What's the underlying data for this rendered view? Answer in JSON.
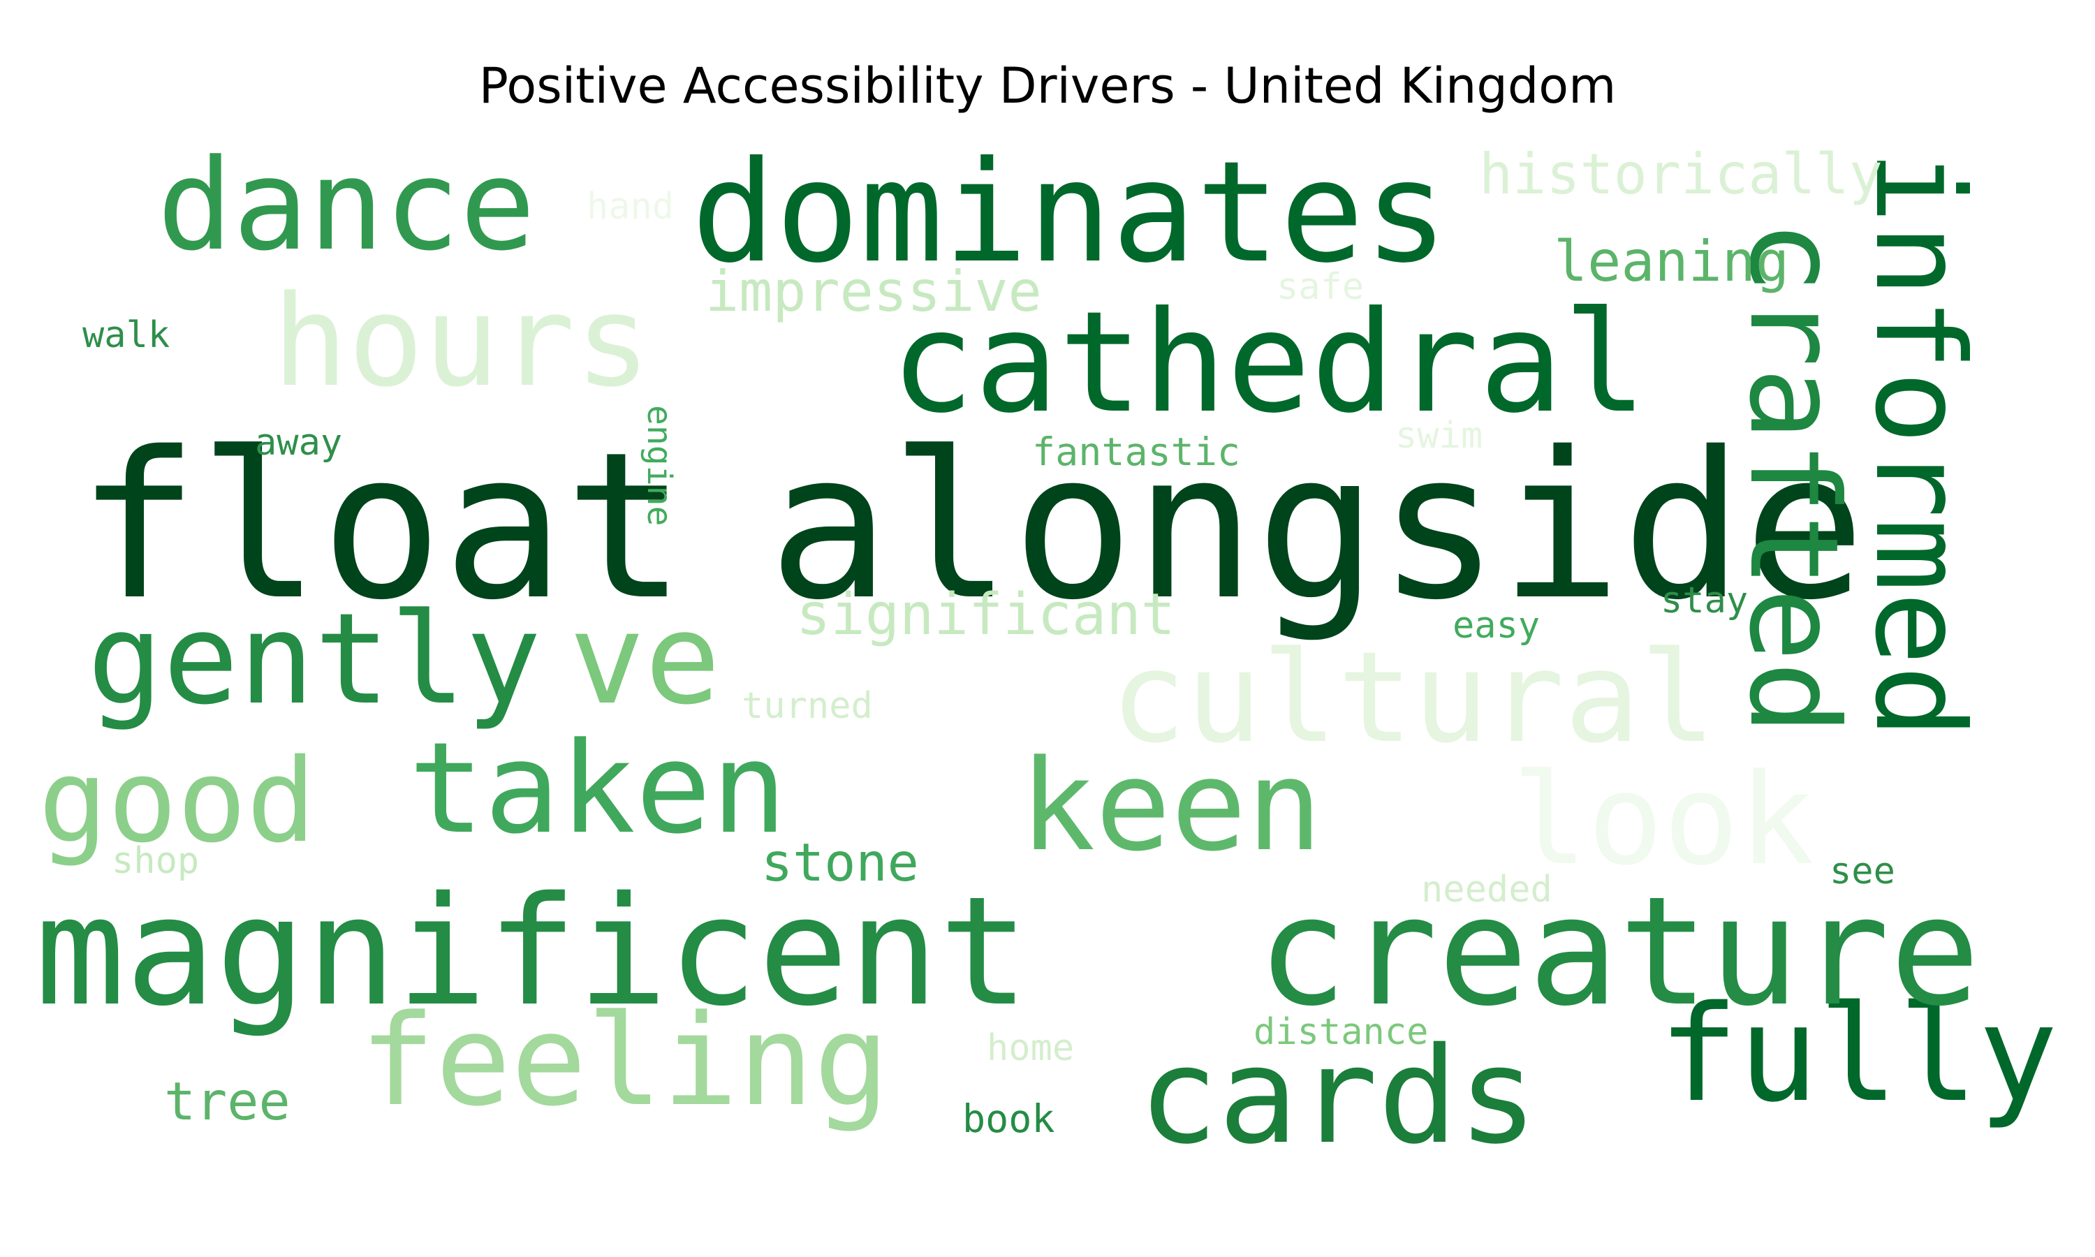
{
  "chart_data": {
    "type": "wordcloud",
    "title": "Positive Accessibility Drivers - United Kingdom",
    "colormap": "Greens",
    "words": [
      {
        "text": "float",
        "color": "#00441b"
      },
      {
        "text": "alongside",
        "color": "#00441b"
      },
      {
        "text": "dominates",
        "color": "#00682a"
      },
      {
        "text": "cathedral",
        "color": "#00682a"
      },
      {
        "text": "informed",
        "color": "#00682a"
      },
      {
        "text": "fully",
        "color": "#00682a"
      },
      {
        "text": "crafted",
        "color": "#1e8741"
      },
      {
        "text": "cards",
        "color": "#1b7e3a"
      },
      {
        "text": "magnificent",
        "color": "#248c45"
      },
      {
        "text": "creature",
        "color": "#248c45"
      },
      {
        "text": "gently",
        "color": "#248c45"
      },
      {
        "text": "dance",
        "color": "#31994f"
      },
      {
        "text": "taken",
        "color": "#40a85c"
      },
      {
        "text": "keen",
        "color": "#5eb86c"
      },
      {
        "text": "leaning",
        "color": "#5cb46a"
      },
      {
        "text": "stone",
        "color": "#40a85c"
      },
      {
        "text": "tree",
        "color": "#5cb46a"
      },
      {
        "text": "good",
        "color": "#8ccf8a"
      },
      {
        "text": "ve",
        "color": "#7cc87c"
      },
      {
        "text": "feeling",
        "color": "#a3d99c"
      },
      {
        "text": "significant",
        "color": "#c7e9c0"
      },
      {
        "text": "impressive",
        "color": "#c7e9c0"
      },
      {
        "text": "hours",
        "color": "#dbf1d5"
      },
      {
        "text": "historically",
        "color": "#dbf1d5"
      },
      {
        "text": "cultural",
        "color": "#e5f5e0"
      },
      {
        "text": "look",
        "color": "#f0faee"
      },
      {
        "text": "walk",
        "color": "#2e8f4a"
      },
      {
        "text": "away",
        "color": "#2e8f4a"
      },
      {
        "text": "engine",
        "color": "#41ab5d"
      },
      {
        "text": "fantastic",
        "color": "#5cb46a"
      },
      {
        "text": "stay",
        "color": "#2e8f4a"
      },
      {
        "text": "easy",
        "color": "#41ab5d"
      },
      {
        "text": "see",
        "color": "#2e8f4a"
      },
      {
        "text": "book",
        "color": "#248c45"
      },
      {
        "text": "distance",
        "color": "#7cc87c"
      },
      {
        "text": "shop",
        "color": "#c7e9c0"
      },
      {
        "text": "needed",
        "color": "#d4eecd"
      },
      {
        "text": "home",
        "color": "#d4eecd"
      },
      {
        "text": "turned",
        "color": "#d4eecd"
      },
      {
        "text": "swim",
        "color": "#e5f5e0"
      },
      {
        "text": "safe",
        "color": "#e5f5e0"
      },
      {
        "text": "hand",
        "color": "#eef8ea"
      }
    ]
  }
}
